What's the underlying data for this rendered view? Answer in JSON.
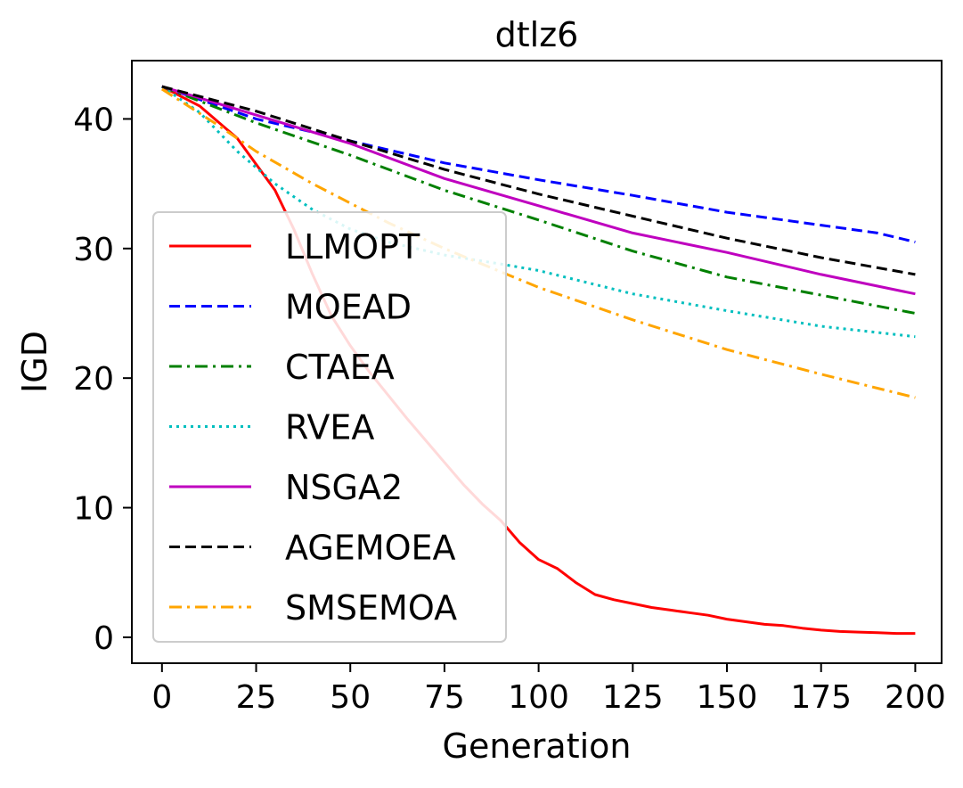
{
  "chart_data": {
    "type": "line",
    "title": "dtlz6",
    "xlabel": "Generation",
    "ylabel": "IGD",
    "xlim": [
      -8,
      207
    ],
    "ylim": [
      -2,
      44.5
    ],
    "xticks": [
      0,
      25,
      50,
      75,
      100,
      125,
      150,
      175,
      200
    ],
    "yticks": [
      0,
      10,
      20,
      30,
      40
    ],
    "grid": false,
    "legend_position": "lower-left",
    "series": [
      {
        "name": "LLMOPT",
        "color": "#ff0000",
        "style": "solid",
        "x": [
          0,
          10,
          20,
          25,
          30,
          35,
          40,
          45,
          50,
          55,
          60,
          65,
          70,
          75,
          80,
          85,
          90,
          95,
          100,
          105,
          110,
          115,
          120,
          125,
          130,
          135,
          140,
          145,
          150,
          155,
          160,
          165,
          170,
          175,
          180,
          185,
          190,
          195,
          200
        ],
        "y": [
          42.5,
          41.0,
          38.5,
          36.5,
          34.5,
          31.5,
          28.0,
          24.8,
          22.5,
          20.5,
          18.7,
          16.9,
          15.2,
          13.5,
          11.8,
          10.3,
          9.0,
          7.3,
          6.0,
          5.3,
          4.2,
          3.3,
          2.9,
          2.6,
          2.3,
          2.1,
          1.9,
          1.7,
          1.4,
          1.2,
          1.0,
          0.9,
          0.7,
          0.55,
          0.45,
          0.4,
          0.35,
          0.3,
          0.3
        ]
      },
      {
        "name": "MOEAD",
        "color": "#0000ff",
        "style": "dashed",
        "x": [
          0,
          25,
          50,
          75,
          100,
          125,
          150,
          175,
          190,
          200
        ],
        "y": [
          42.5,
          40.0,
          38.3,
          36.6,
          35.3,
          34.1,
          32.8,
          31.8,
          31.2,
          30.5
        ]
      },
      {
        "name": "CTAEA",
        "color": "#008000",
        "style": "dashdot",
        "x": [
          0,
          25,
          50,
          75,
          100,
          125,
          150,
          175,
          200
        ],
        "y": [
          42.5,
          39.7,
          37.2,
          34.5,
          32.2,
          29.8,
          27.8,
          26.4,
          25.0
        ]
      },
      {
        "name": "RVEA",
        "color": "#00bfbf",
        "style": "dotted",
        "x": [
          0,
          10,
          20,
          30,
          40,
          50,
          60,
          75,
          90,
          100,
          125,
          150,
          175,
          200
        ],
        "y": [
          42.5,
          40.5,
          37.5,
          35.0,
          33.0,
          31.5,
          30.5,
          29.5,
          28.8,
          28.3,
          26.5,
          25.2,
          24.0,
          23.2
        ]
      },
      {
        "name": "NSGA2",
        "color": "#bf00bf",
        "style": "solid",
        "x": [
          0,
          25,
          50,
          75,
          100,
          125,
          150,
          175,
          200
        ],
        "y": [
          42.5,
          40.3,
          38.1,
          35.4,
          33.3,
          31.2,
          29.7,
          28.0,
          26.5
        ]
      },
      {
        "name": "AGEMOEA",
        "color": "#000000",
        "style": "dashed",
        "x": [
          0,
          25,
          50,
          75,
          100,
          125,
          150,
          175,
          200
        ],
        "y": [
          42.5,
          40.6,
          38.3,
          36.1,
          34.2,
          32.5,
          30.8,
          29.3,
          28.0
        ]
      },
      {
        "name": "SMSEMOA",
        "color": "#ffa500",
        "style": "dashdot",
        "x": [
          0,
          15,
          25,
          40,
          50,
          60,
          75,
          100,
          125,
          150,
          175,
          200
        ],
        "y": [
          42.3,
          39.5,
          37.5,
          35.0,
          33.5,
          32.0,
          30.0,
          27.0,
          24.5,
          22.2,
          20.3,
          18.5
        ]
      }
    ]
  }
}
